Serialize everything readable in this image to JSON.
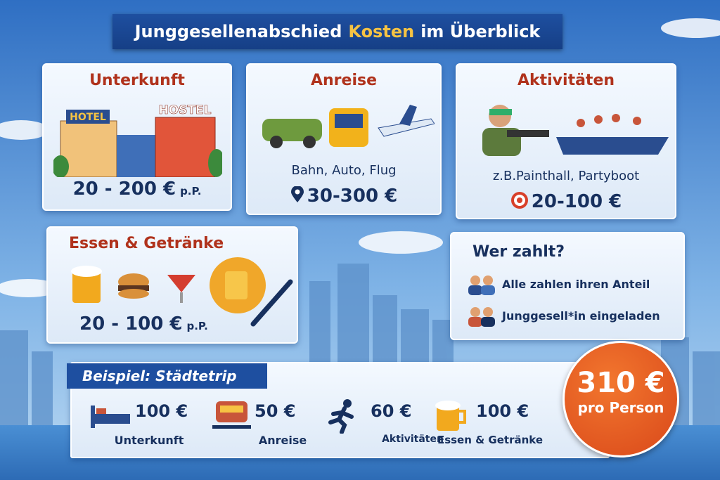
{
  "header": {
    "title_parts": [
      "Junggesellenabschied",
      "Kosten",
      "im Überblick"
    ]
  },
  "cards": [
    {
      "title": "Unterkunft",
      "signs": [
        "HOTEL",
        "HOSTEL"
      ],
      "price": "20 - 200 €",
      "unit": "p.P."
    },
    {
      "title": "Anreise",
      "description": "Bahn, Auto, Flug",
      "price": "30-300 €"
    },
    {
      "title": "Aktivitäten",
      "description": "z.B.Painthall, Partyboot",
      "price": "20-100 €"
    },
    {
      "title": "Essen & Getränke",
      "price": "20 - 100 €",
      "unit": "p.P."
    }
  ],
  "payment": {
    "title": "Wer zahlt?",
    "options": [
      "Alle zahlen ihren Anteil",
      "Junggesell*in eingeladen"
    ]
  },
  "example": {
    "title": "Beispiel: Städtetrip",
    "items": [
      {
        "amount": "100 €",
        "label": "Unterkunft"
      },
      {
        "amount": "50 €",
        "label": "Anreise"
      },
      {
        "amount": "60 €",
        "label": "Aktivitäten"
      },
      {
        "amount": "100 €",
        "label": "Essen & Getränke"
      }
    ]
  },
  "total": {
    "amount": "310 €",
    "label": "pro Person"
  }
}
